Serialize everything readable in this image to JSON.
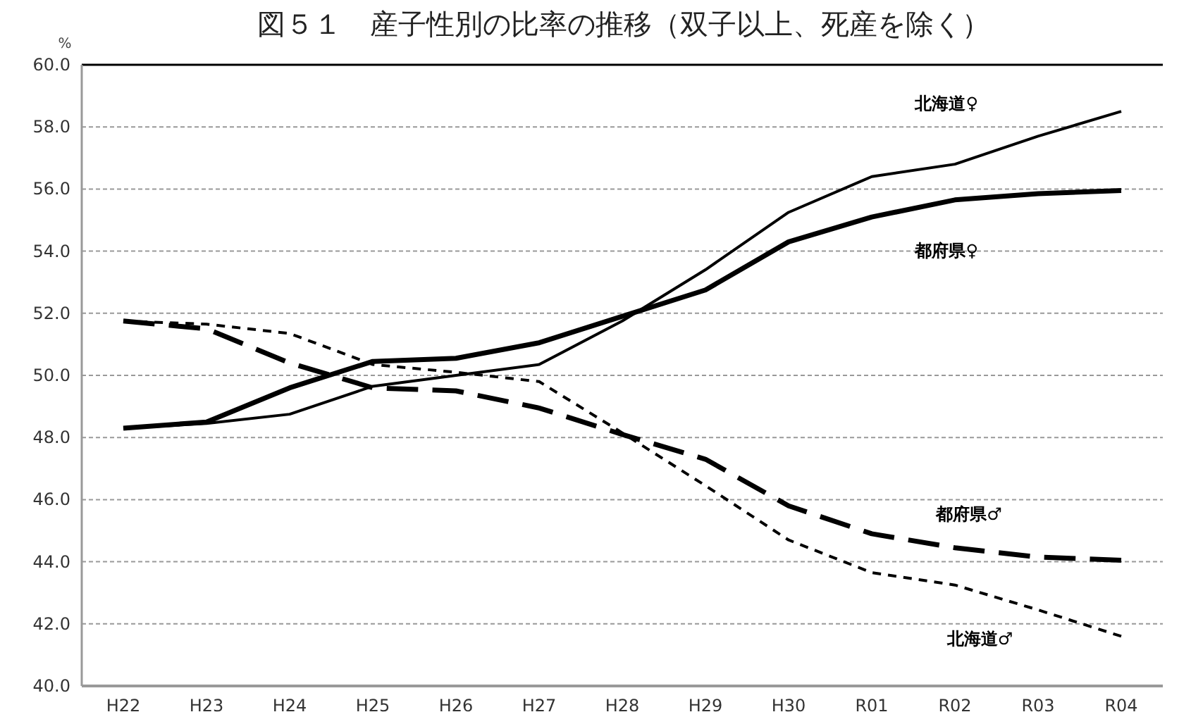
{
  "chart_data": {
    "type": "line",
    "title": "図５１　産子性別の比率の推移（双子以上、死産を除く）",
    "ylabel": "%",
    "categories": [
      "H22",
      "H23",
      "H24",
      "H25",
      "H26",
      "H27",
      "H28",
      "H29",
      "H30",
      "R01",
      "R02",
      "R03",
      "R04"
    ],
    "series": [
      {
        "name": "北海道♀",
        "color": "#000000",
        "line_style": "solid",
        "values": [
          48.3,
          48.45,
          48.75,
          49.65,
          50.0,
          50.35,
          51.75,
          53.4,
          55.25,
          56.4,
          56.8,
          57.7,
          58.5
        ]
      },
      {
        "name": "都府県♀",
        "color": "#000000",
        "line_style": "solid",
        "values": [
          48.3,
          48.5,
          49.6,
          50.45,
          50.55,
          51.05,
          51.9,
          52.75,
          54.3,
          55.1,
          55.65,
          55.85,
          55.95
        ]
      },
      {
        "name": "都府県♂",
        "color": "#000000",
        "line_style": "dashed",
        "values": [
          51.75,
          51.5,
          50.4,
          49.6,
          49.5,
          48.95,
          48.1,
          47.3,
          45.8,
          44.9,
          44.45,
          44.15,
          44.05
        ]
      },
      {
        "name": "北海道♂",
        "color": "#000000",
        "line_style": "dotted",
        "values": [
          51.75,
          51.65,
          51.35,
          50.35,
          50.1,
          49.8,
          48.15,
          46.45,
          44.7,
          43.65,
          43.25,
          42.45,
          41.6
        ]
      }
    ],
    "ylim": [
      40,
      60
    ],
    "yticks": [
      {
        "value": 40,
        "label": "40.0"
      },
      {
        "value": 42,
        "label": "42.0"
      },
      {
        "value": 44,
        "label": "44.0"
      },
      {
        "value": 46,
        "label": "46.0"
      },
      {
        "value": 48,
        "label": "48.0"
      },
      {
        "value": 50,
        "label": "50.0"
      },
      {
        "value": 52,
        "label": "52.0"
      },
      {
        "value": 54,
        "label": "54.0"
      },
      {
        "value": 56,
        "label": "56.0"
      },
      {
        "value": 58,
        "label": "58.0"
      },
      {
        "value": 60,
        "label": "60.0"
      }
    ],
    "grid": "y",
    "marker": "none"
  }
}
